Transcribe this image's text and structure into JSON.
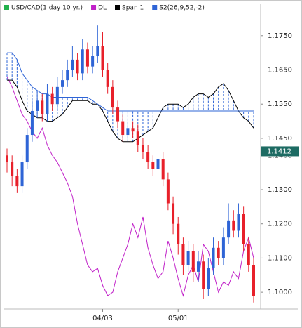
{
  "chart_data": {
    "type": "candlestick",
    "candles": {
      "name": "USD/CAD(1 day  10 yr.)",
      "legend_color": "#22b14c",
      "up_color": "#2e64d6",
      "down_color": "#e8202a",
      "open": [
        1.14,
        1.138,
        1.134,
        1.131,
        1.138,
        1.146,
        1.153,
        1.156,
        1.152,
        1.158,
        1.155,
        1.16,
        1.162,
        1.165,
        1.168,
        1.164,
        1.171,
        1.166,
        1.169,
        1.172,
        1.165,
        1.16,
        1.154,
        1.15,
        1.146,
        1.148,
        1.147,
        1.143,
        1.141,
        1.138,
        1.136,
        1.139,
        1.133,
        1.126,
        1.12,
        1.114,
        1.108,
        1.112,
        1.106,
        1.109,
        1.101,
        1.107,
        1.113,
        1.11,
        1.116,
        1.121,
        1.118,
        1.123,
        1.114,
        1.108
      ],
      "high": [
        1.142,
        1.14,
        1.136,
        1.14,
        1.148,
        1.156,
        1.159,
        1.158,
        1.161,
        1.16,
        1.163,
        1.165,
        1.168,
        1.172,
        1.17,
        1.174,
        1.173,
        1.172,
        1.178,
        1.176,
        1.167,
        1.162,
        1.156,
        1.152,
        1.15,
        1.15,
        1.149,
        1.145,
        1.143,
        1.14,
        1.141,
        1.141,
        1.135,
        1.128,
        1.122,
        1.116,
        1.115,
        1.114,
        1.112,
        1.111,
        1.11,
        1.116,
        1.115,
        1.119,
        1.126,
        1.124,
        1.126,
        1.125,
        1.116,
        1.11
      ],
      "low": [
        1.135,
        1.131,
        1.129,
        1.129,
        1.136,
        1.144,
        1.151,
        1.15,
        1.15,
        1.153,
        1.153,
        1.158,
        1.16,
        1.163,
        1.162,
        1.162,
        1.164,
        1.164,
        1.167,
        1.163,
        1.158,
        1.152,
        1.148,
        1.144,
        1.144,
        1.145,
        1.141,
        1.139,
        1.136,
        1.134,
        1.134,
        1.131,
        1.124,
        1.117,
        1.111,
        1.105,
        1.106,
        1.103,
        1.103,
        1.098,
        1.099,
        1.105,
        1.108,
        1.108,
        1.114,
        1.116,
        1.116,
        1.112,
        1.106,
        1.097
      ],
      "close": [
        1.138,
        1.134,
        1.131,
        1.138,
        1.146,
        1.153,
        1.156,
        1.152,
        1.158,
        1.155,
        1.16,
        1.162,
        1.165,
        1.168,
        1.164,
        1.171,
        1.166,
        1.169,
        1.172,
        1.165,
        1.16,
        1.154,
        1.15,
        1.146,
        1.148,
        1.147,
        1.143,
        1.141,
        1.138,
        1.136,
        1.139,
        1.133,
        1.126,
        1.12,
        1.114,
        1.108,
        1.112,
        1.106,
        1.109,
        1.101,
        1.107,
        1.113,
        1.11,
        1.116,
        1.121,
        1.118,
        1.123,
        1.114,
        1.108,
        1.099
      ]
    },
    "series": [
      {
        "name": "DL",
        "color": "#c020c8",
        "values": [
          1.163,
          1.16,
          1.156,
          1.152,
          1.15,
          1.147,
          1.145,
          1.148,
          1.143,
          1.14,
          1.138,
          1.135,
          1.132,
          1.128,
          1.12,
          1.114,
          1.108,
          1.106,
          1.107,
          1.102,
          1.099,
          1.1,
          1.106,
          1.11,
          1.114,
          1.12,
          1.116,
          1.122,
          1.113,
          1.108,
          1.104,
          1.106,
          1.115,
          1.11,
          1.104,
          1.099,
          1.105,
          1.108,
          1.103,
          1.114,
          1.112,
          1.106,
          1.1,
          1.103,
          1.102,
          1.106,
          1.104,
          1.112,
          1.116,
          1.11
        ]
      },
      {
        "name": "Span 1",
        "color": "#000000",
        "values": [
          1.162,
          1.162,
          1.16,
          1.156,
          1.153,
          1.152,
          1.151,
          1.151,
          1.15,
          1.15,
          1.151,
          1.152,
          1.154,
          1.156,
          1.156,
          1.156,
          1.156,
          1.155,
          1.155,
          1.153,
          1.15,
          1.147,
          1.145,
          1.144,
          1.144,
          1.144,
          1.145,
          1.146,
          1.147,
          1.148,
          1.151,
          1.154,
          1.155,
          1.155,
          1.155,
          1.154,
          1.155,
          1.157,
          1.158,
          1.158,
          1.157,
          1.158,
          1.16,
          1.161,
          1.159,
          1.156,
          1.153,
          1.151,
          1.15,
          1.148
        ]
      },
      {
        "name": "S2(26,9,52,-2)",
        "color": "#2e64d6",
        "values": [
          1.17,
          1.17,
          1.168,
          1.164,
          1.162,
          1.16,
          1.159,
          1.158,
          1.158,
          1.157,
          1.157,
          1.157,
          1.157,
          1.157,
          1.157,
          1.157,
          1.157,
          1.156,
          1.155,
          1.154,
          1.153,
          1.153,
          1.153,
          1.153,
          1.153,
          1.153,
          1.153,
          1.153,
          1.153,
          1.153,
          1.153,
          1.153,
          1.153,
          1.153,
          1.153,
          1.153,
          1.153,
          1.153,
          1.153,
          1.153,
          1.153,
          1.153,
          1.153,
          1.153,
          1.153,
          1.153,
          1.153,
          1.153,
          1.153,
          1.153
        ]
      }
    ],
    "categories": [
      null,
      null,
      null,
      null,
      null,
      null,
      null,
      null,
      null,
      null,
      null,
      null,
      null,
      null,
      null,
      null,
      null,
      null,
      null,
      "04/03",
      null,
      null,
      null,
      null,
      null,
      null,
      null,
      null,
      null,
      null,
      null,
      null,
      null,
      null,
      "05/01",
      null,
      null,
      null,
      null,
      null,
      null,
      null,
      null,
      null,
      null,
      null,
      null,
      null,
      null,
      null
    ],
    "ylim": [
      1.0951,
      1.1844
    ],
    "yticks": [
      {
        "value": 1.175,
        "label": "1.1750"
      },
      {
        "value": 1.165,
        "label": "1.1650"
      },
      {
        "value": 1.155,
        "label": "1.1550"
      },
      {
        "value": 1.145,
        "label": "1.1450"
      },
      {
        "value": 1.14,
        "label": "1.1400"
      },
      {
        "value": 1.13,
        "label": "1.1300"
      },
      {
        "value": 1.12,
        "label": "1.1200"
      },
      {
        "value": 1.11,
        "label": "1.1100"
      },
      {
        "value": 1.1,
        "label": "1.1000"
      }
    ],
    "price_marker": {
      "value": 1.1412,
      "label": "1.1412",
      "color": "#1d6b63"
    }
  }
}
